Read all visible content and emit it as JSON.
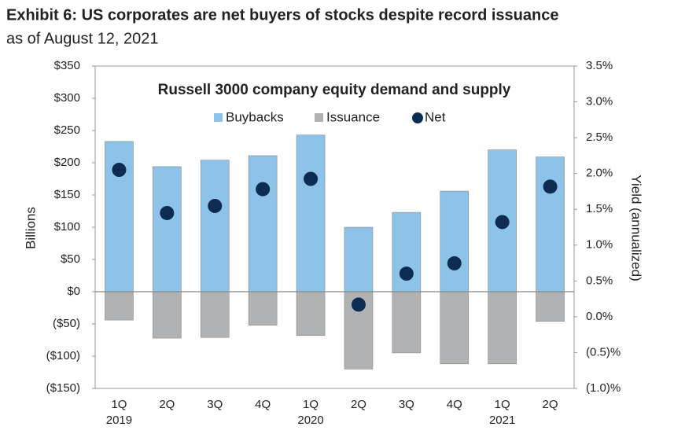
{
  "chart_data": {
    "type": "bar",
    "title": "Exhibit 6: US corporates are net buyers of stocks despite record issuance",
    "subtitle": "as of August 12, 2021",
    "plot_title": "Russell 3000 company equity demand and supply",
    "y_label": "Billions",
    "y2_label": "Yield (annualized)",
    "categories": [
      "1Q",
      "2Q",
      "3Q",
      "4Q",
      "1Q",
      "2Q",
      "3Q",
      "4Q",
      "1Q",
      "2Q"
    ],
    "x_group_labels": [
      "2019",
      null,
      null,
      null,
      "2020",
      null,
      null,
      null,
      "2021",
      null
    ],
    "series": [
      {
        "name": "Buybacks",
        "color": "#8dc3e8",
        "kind": "bar",
        "values": [
          233,
          194,
          204,
          211,
          243,
          100,
          123,
          156,
          220,
          209
        ]
      },
      {
        "name": "Issuance",
        "color": "#b0b2b4",
        "kind": "bar",
        "values": [
          -44,
          -72,
          -71,
          -52,
          -68,
          -120,
          -95,
          -112,
          -112,
          -46
        ]
      },
      {
        "name": "Net",
        "color": "#0c2c52",
        "kind": "dot",
        "values": [
          189,
          122,
          133,
          159,
          175,
          -20,
          28,
          44,
          108,
          163
        ]
      }
    ],
    "ylim": [
      -150,
      350
    ],
    "yticks": [
      {
        "value": -150,
        "label": "($150)"
      },
      {
        "value": -100,
        "label": "($100)"
      },
      {
        "value": -50,
        "label": "($50)"
      },
      {
        "value": 0,
        "label": "$0"
      },
      {
        "value": 50,
        "label": "$50"
      },
      {
        "value": 100,
        "label": "$100"
      },
      {
        "value": 150,
        "label": "$150"
      },
      {
        "value": 200,
        "label": "$200"
      },
      {
        "value": 250,
        "label": "$250"
      },
      {
        "value": 300,
        "label": "$300"
      },
      {
        "value": 350,
        "label": "$350"
      }
    ],
    "y2lim": [
      -1.0,
      3.5
    ],
    "y2ticks": [
      {
        "value": -1.0,
        "label": "(1.0)%"
      },
      {
        "value": -0.5,
        "label": "(0.5)%"
      },
      {
        "value": 0.0,
        "label": "0.0%"
      },
      {
        "value": 0.5,
        "label": "0.5%"
      },
      {
        "value": 1.0,
        "label": "1.0%"
      },
      {
        "value": 1.5,
        "label": "1.5%"
      },
      {
        "value": 2.0,
        "label": "2.0%"
      },
      {
        "value": 2.5,
        "label": "2.5%"
      },
      {
        "value": 3.0,
        "label": "3.0%"
      },
      {
        "value": 3.5,
        "label": "3.5%"
      }
    ]
  }
}
